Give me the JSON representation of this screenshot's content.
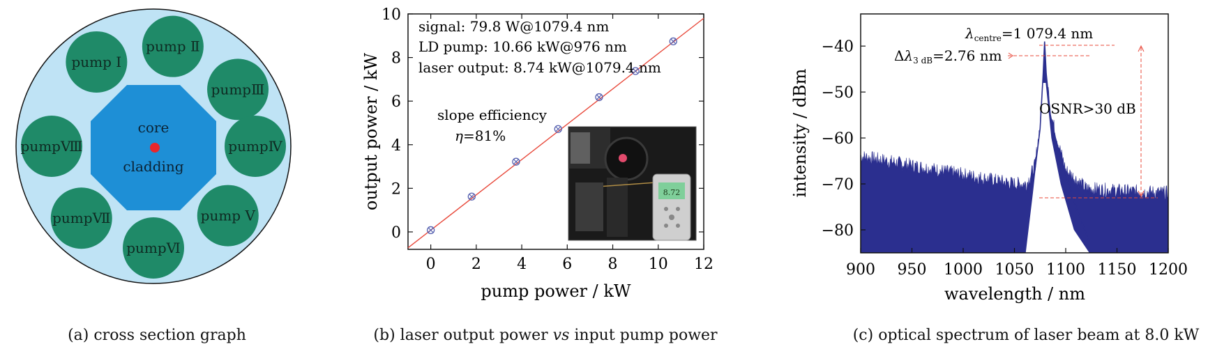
{
  "panel_a": {
    "caption": "(a) cross section graph",
    "core_label": "core",
    "cladding_label": "cladding",
    "pumps": [
      "pump Ⅰ",
      "pump Ⅱ",
      "pumpⅢ",
      "pumpⅣ",
      "pump Ⅴ",
      "pumpⅥ",
      "pumpⅦ",
      "pumpⅧ"
    ],
    "colors": {
      "outer": "#bfe3f5",
      "pump": "#1f8a68",
      "cladding": "#1e8fd6",
      "core": "#e8262c"
    }
  },
  "panel_b": {
    "caption_prefix": "(b) laser output power ",
    "caption_vs": "vs",
    "caption_suffix": " input pump power",
    "annotations": {
      "signal": "signal: 79.8 W@1079.4 nm",
      "ld_pump": "LD pump: 10.66 kW@976 nm",
      "laser_output": "laser output: 8.74 kW@1079.4 nm",
      "slope_label": "slope efficiency",
      "eta_symbol": "η",
      "eta_value": "=81%"
    }
  },
  "panel_c": {
    "caption": "(c) optical spectrum of laser beam at 8.0 kW",
    "annotations": {
      "lambda_symbol": "λ",
      "lambda_sub": "centre",
      "lambda_value": "=1 079.4 nm",
      "delta_symbol": "Δ",
      "delta_lambda": "λ",
      "delta_sub": "3 dB",
      "delta_value": "=2.76 nm",
      "osnr": "OSNR>30 dB"
    }
  },
  "chart_data": [
    {
      "type": "scatter",
      "x": [
        0,
        1.8,
        3.75,
        5.6,
        7.4,
        9.0,
        10.66
      ],
      "y": [
        0.08,
        1.62,
        3.22,
        4.72,
        6.18,
        7.38,
        8.74
      ],
      "fit_line": {
        "slope": 0.81,
        "intercept": 0.08,
        "color": "#e8483a"
      },
      "marker_color": "#5560b0",
      "title": "",
      "xlabel": "pump power / kW",
      "ylabel": "output power / kW",
      "xlim": [
        -1,
        12
      ],
      "ylim": [
        -0.8,
        10
      ],
      "xticks": [
        0,
        2,
        4,
        6,
        8,
        10,
        12
      ],
      "yticks": [
        0,
        2,
        4,
        6,
        8,
        10
      ],
      "grid": false
    },
    {
      "type": "line",
      "x": [
        900,
        950,
        1000,
        1050,
        1062,
        1070,
        1075,
        1078,
        1079.4,
        1081,
        1085,
        1090,
        1095,
        1100,
        1120,
        1150,
        1200
      ],
      "y": [
        -65,
        -67,
        -69,
        -71,
        -71,
        -67,
        -58,
        -46,
        -39,
        -46,
        -55,
        -60,
        -64,
        -68,
        -72,
        -72.5,
        -73
      ],
      "line_color": "#2b2f8f",
      "title": "",
      "xlabel": "wavelength / nm",
      "ylabel": "intensity / dBm",
      "xlim": [
        900,
        1200
      ],
      "ylim": [
        -85,
        -33
      ],
      "xticks": [
        900,
        950,
        1000,
        1050,
        1100,
        1150,
        1200
      ],
      "yticks": [
        -80,
        -70,
        -60,
        -50,
        -40
      ],
      "grid": false
    }
  ]
}
